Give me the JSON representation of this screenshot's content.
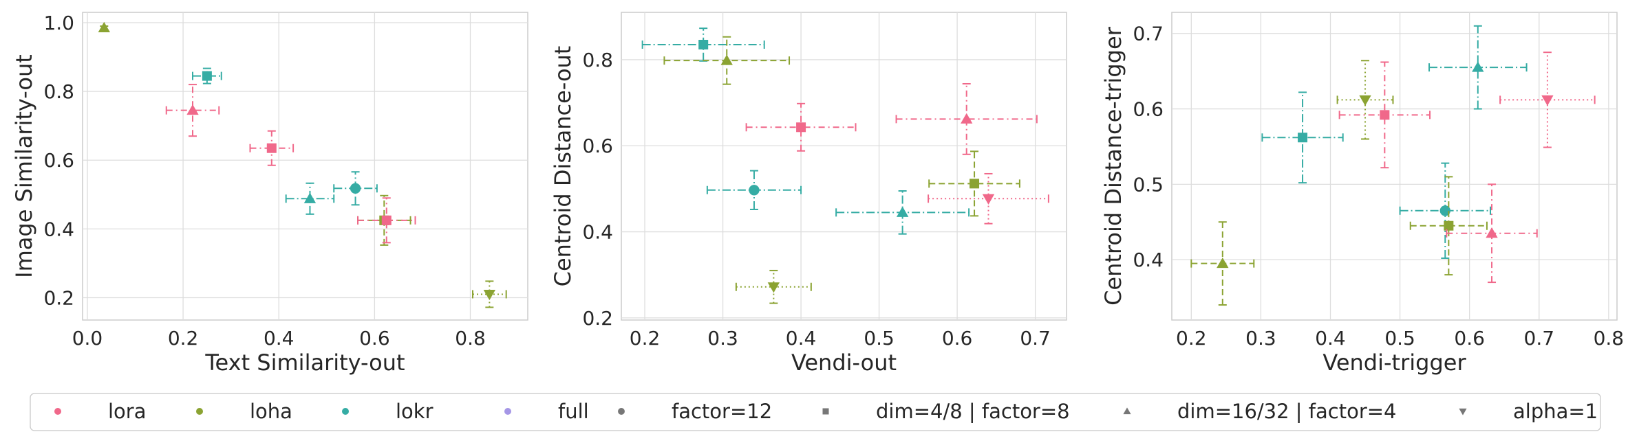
{
  "colors": {
    "lora": "#f0688a",
    "loha": "#8ba332",
    "lokr": "#35aca4",
    "full": "#a596e6",
    "neutral": "#777777"
  },
  "legend": [
    {
      "label": "lora",
      "kind": "color",
      "color": "#f0688a"
    },
    {
      "label": "loha",
      "kind": "color",
      "color": "#8ba332"
    },
    {
      "label": "lokr",
      "kind": "color",
      "color": "#35aca4"
    },
    {
      "label": "full",
      "kind": "color",
      "color": "#a596e6"
    },
    {
      "label": "factor=12",
      "kind": "marker",
      "marker": "circle"
    },
    {
      "label": "dim=4/8 | factor=8",
      "kind": "marker",
      "marker": "square"
    },
    {
      "label": "dim=16/32 | factor=4",
      "kind": "marker",
      "marker": "triangle-up"
    },
    {
      "label": "alpha=1",
      "kind": "marker",
      "marker": "triangle-down"
    }
  ],
  "chart_data": [
    {
      "type": "scatter",
      "title": "",
      "xlabel": "Text Similarity-out",
      "ylabel": "Image Similarity-out",
      "xlim": [
        -0.01,
        0.92
      ],
      "ylim": [
        0.135,
        1.03
      ],
      "xticks": [
        0.0,
        0.2,
        0.4,
        0.6,
        0.8
      ],
      "xticklabels": [
        "0.0",
        "0.2",
        "0.4",
        "0.6",
        "0.8"
      ],
      "yticks": [
        0.2,
        0.4,
        0.6,
        0.8,
        1.0
      ],
      "yticklabels": [
        "0.2",
        "0.4",
        "0.6",
        "0.8",
        "1.0"
      ],
      "grid": true,
      "points": [
        {
          "algo": "loha",
          "marker": "triangle-up",
          "x": 0.035,
          "y": 0.985,
          "xerr": 0.0,
          "yerr": 0.005
        },
        {
          "algo": "lokr",
          "marker": "square",
          "x": 0.25,
          "y": 0.845,
          "xerr": 0.03,
          "yerr": 0.022
        },
        {
          "algo": "lora",
          "marker": "triangle-up",
          "x": 0.22,
          "y": 0.745,
          "xerr": 0.055,
          "yerr": 0.075
        },
        {
          "algo": "lora",
          "marker": "square",
          "x": 0.385,
          "y": 0.635,
          "xerr": 0.045,
          "yerr": 0.05
        },
        {
          "algo": "lokr",
          "marker": "triangle-up",
          "x": 0.465,
          "y": 0.488,
          "xerr": 0.05,
          "yerr": 0.045
        },
        {
          "algo": "lokr",
          "marker": "circle",
          "x": 0.56,
          "y": 0.518,
          "xerr": 0.045,
          "yerr": 0.048
        },
        {
          "algo": "loha",
          "marker": "square",
          "x": 0.62,
          "y": 0.425,
          "xerr": 0.055,
          "yerr": 0.072
        },
        {
          "algo": "lora",
          "marker": "square",
          "x": 0.625,
          "y": 0.425,
          "xerr": 0.06,
          "yerr": 0.065
        },
        {
          "algo": "loha",
          "marker": "triangle-down",
          "x": 0.84,
          "y": 0.21,
          "xerr": 0.035,
          "yerr": 0.038
        }
      ]
    },
    {
      "type": "scatter",
      "title": "",
      "xlabel": "Vendi-out",
      "ylabel": "Centroid Distance-out",
      "xlim": [
        0.17,
        0.74
      ],
      "ylim": [
        0.195,
        0.91
      ],
      "xticks": [
        0.2,
        0.3,
        0.4,
        0.5,
        0.6,
        0.7
      ],
      "xticklabels": [
        "0.2",
        "0.3",
        "0.4",
        "0.5",
        "0.6",
        "0.7"
      ],
      "yticks": [
        0.2,
        0.4,
        0.6,
        0.8
      ],
      "yticklabels": [
        "0.2",
        "0.4",
        "0.6",
        "0.8"
      ],
      "grid": true,
      "points": [
        {
          "algo": "lokr",
          "marker": "square",
          "x": 0.275,
          "y": 0.835,
          "xerr": 0.078,
          "yerr": 0.038
        },
        {
          "algo": "loha",
          "marker": "triangle-up",
          "x": 0.305,
          "y": 0.798,
          "xerr": 0.08,
          "yerr": 0.055
        },
        {
          "algo": "lora",
          "marker": "square",
          "x": 0.4,
          "y": 0.643,
          "xerr": 0.07,
          "yerr": 0.055
        },
        {
          "algo": "lora",
          "marker": "triangle-up",
          "x": 0.612,
          "y": 0.662,
          "xerr": 0.09,
          "yerr": 0.082
        },
        {
          "algo": "lokr",
          "marker": "circle",
          "x": 0.34,
          "y": 0.497,
          "xerr": 0.06,
          "yerr": 0.045
        },
        {
          "algo": "loha",
          "marker": "square",
          "x": 0.622,
          "y": 0.512,
          "xerr": 0.058,
          "yerr": 0.075
        },
        {
          "algo": "lora",
          "marker": "triangle-down",
          "x": 0.64,
          "y": 0.477,
          "xerr": 0.077,
          "yerr": 0.058
        },
        {
          "algo": "lokr",
          "marker": "triangle-up",
          "x": 0.53,
          "y": 0.445,
          "xerr": 0.085,
          "yerr": 0.05
        },
        {
          "algo": "loha",
          "marker": "triangle-down",
          "x": 0.365,
          "y": 0.272,
          "xerr": 0.048,
          "yerr": 0.038
        }
      ]
    },
    {
      "type": "scatter",
      "title": "",
      "xlabel": "Vendi-trigger",
      "ylabel": "Centroid Distance-trigger",
      "xlim": [
        0.172,
        0.812
      ],
      "ylim": [
        0.32,
        0.728
      ],
      "xticks": [
        0.2,
        0.3,
        0.4,
        0.5,
        0.6,
        0.7,
        0.8
      ],
      "xticklabels": [
        "0.2",
        "0.3",
        "0.4",
        "0.5",
        "0.6",
        "0.7",
        "0.8"
      ],
      "yticks": [
        0.4,
        0.5,
        0.6,
        0.7
      ],
      "yticklabels": [
        "0.4",
        "0.5",
        "0.6",
        "0.7"
      ],
      "grid": true,
      "points": [
        {
          "algo": "lokr",
          "marker": "triangle-up",
          "x": 0.612,
          "y": 0.655,
          "xerr": 0.07,
          "yerr": 0.055
        },
        {
          "algo": "loha",
          "marker": "triangle-down",
          "x": 0.45,
          "y": 0.612,
          "xerr": 0.04,
          "yerr": 0.052
        },
        {
          "algo": "lora",
          "marker": "square",
          "x": 0.478,
          "y": 0.592,
          "xerr": 0.065,
          "yerr": 0.07
        },
        {
          "algo": "lora",
          "marker": "triangle-down",
          "x": 0.712,
          "y": 0.612,
          "xerr": 0.068,
          "yerr": 0.063
        },
        {
          "algo": "lokr",
          "marker": "square",
          "x": 0.36,
          "y": 0.562,
          "xerr": 0.058,
          "yerr": 0.06
        },
        {
          "algo": "lokr",
          "marker": "circle",
          "x": 0.565,
          "y": 0.465,
          "xerr": 0.065,
          "yerr": 0.063
        },
        {
          "algo": "loha",
          "marker": "square",
          "x": 0.57,
          "y": 0.445,
          "xerr": 0.055,
          "yerr": 0.065
        },
        {
          "algo": "lora",
          "marker": "triangle-up",
          "x": 0.632,
          "y": 0.435,
          "xerr": 0.065,
          "yerr": 0.065
        },
        {
          "algo": "loha",
          "marker": "triangle-up",
          "x": 0.245,
          "y": 0.395,
          "xerr": 0.045,
          "yerr": 0.055
        }
      ]
    }
  ]
}
